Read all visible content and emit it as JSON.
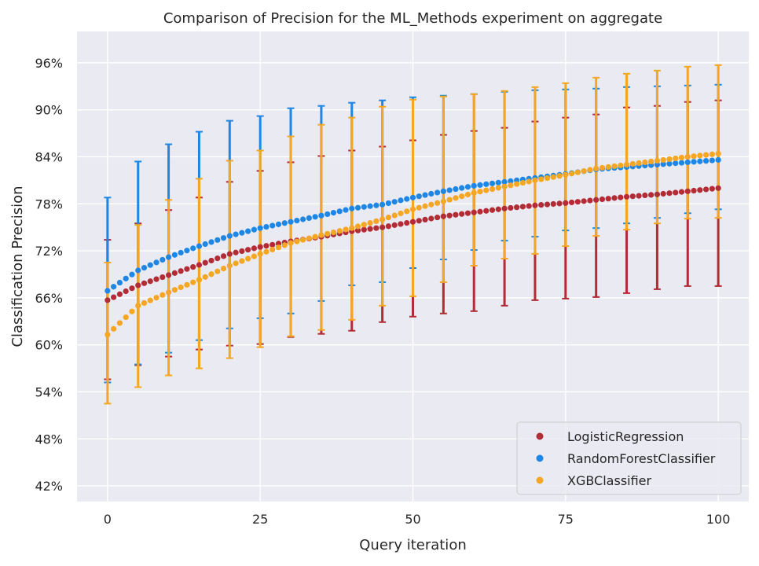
{
  "chart_data": {
    "type": "scatter",
    "title": "Comparison of Precision for the ML_Methods experiment on aggregate",
    "xlabel": "Query iteration",
    "ylabel": "Classification Precision",
    "xlim": [
      -5,
      105
    ],
    "ylim": [
      0.4,
      1.0
    ],
    "x_ticks": [
      0,
      25,
      50,
      75,
      100
    ],
    "x_tick_labels": [
      "0",
      "25",
      "50",
      "75",
      "100"
    ],
    "y_ticks": [
      0.42,
      0.48,
      0.54,
      0.6,
      0.66,
      0.72,
      0.78,
      0.84,
      0.9,
      0.96
    ],
    "y_tick_labels": [
      "42%",
      "48%",
      "54%",
      "60%",
      "66%",
      "72%",
      "78%",
      "84%",
      "90%",
      "96%"
    ],
    "grid": true,
    "legend_position": "lower-right",
    "background_color": "#eaeaf2",
    "series": [
      {
        "name": "LogisticRegression",
        "color": "#b22b35",
        "curve": {
          "x": [
            0,
            5,
            10,
            15,
            20,
            25,
            30,
            35,
            40,
            45,
            50,
            55,
            60,
            65,
            70,
            75,
            80,
            85,
            90,
            95,
            100
          ],
          "y": [
            0.657,
            0.676,
            0.689,
            0.702,
            0.716,
            0.725,
            0.732,
            0.738,
            0.745,
            0.75,
            0.757,
            0.764,
            0.769,
            0.774,
            0.778,
            0.781,
            0.785,
            0.789,
            0.792,
            0.796,
            0.8
          ]
        },
        "error_bars": {
          "x": [
            0,
            5,
            10,
            15,
            20,
            25,
            30,
            35,
            40,
            45,
            50,
            55,
            60,
            65,
            70,
            75,
            80,
            85,
            90,
            95,
            100
          ],
          "lower": [
            0.556,
            0.574,
            0.585,
            0.594,
            0.599,
            0.601,
            0.61,
            0.614,
            0.618,
            0.629,
            0.636,
            0.64,
            0.643,
            0.65,
            0.657,
            0.659,
            0.661,
            0.666,
            0.671,
            0.675,
            0.675
          ],
          "upper": [
            0.734,
            0.755,
            0.772,
            0.788,
            0.808,
            0.822,
            0.833,
            0.841,
            0.848,
            0.853,
            0.861,
            0.868,
            0.873,
            0.877,
            0.885,
            0.89,
            0.894,
            0.903,
            0.905,
            0.91,
            0.912
          ]
        }
      },
      {
        "name": "RandomForestClassifier",
        "color": "#1e87e5",
        "curve": {
          "x": [
            0,
            5,
            10,
            15,
            20,
            25,
            30,
            35,
            40,
            45,
            50,
            55,
            60,
            65,
            70,
            75,
            80,
            85,
            90,
            95,
            100
          ],
          "y": [
            0.669,
            0.695,
            0.712,
            0.726,
            0.739,
            0.749,
            0.757,
            0.765,
            0.774,
            0.779,
            0.788,
            0.796,
            0.803,
            0.808,
            0.813,
            0.818,
            0.824,
            0.827,
            0.83,
            0.833,
            0.836
          ]
        },
        "error_bars": {
          "x": [
            0,
            5,
            10,
            15,
            20,
            25,
            30,
            35,
            40,
            45,
            50,
            55,
            60,
            65,
            70,
            75,
            80,
            85,
            90,
            95,
            100
          ],
          "lower": [
            0.552,
            0.575,
            0.59,
            0.606,
            0.621,
            0.634,
            0.64,
            0.656,
            0.676,
            0.68,
            0.698,
            0.709,
            0.721,
            0.733,
            0.738,
            0.746,
            0.749,
            0.755,
            0.762,
            0.768,
            0.773
          ],
          "upper": [
            0.788,
            0.834,
            0.856,
            0.872,
            0.886,
            0.892,
            0.902,
            0.905,
            0.909,
            0.912,
            0.916,
            0.918,
            0.92,
            0.923,
            0.925,
            0.926,
            0.927,
            0.929,
            0.93,
            0.931,
            0.932
          ]
        }
      },
      {
        "name": "XGBClassifier",
        "color": "#f5a623",
        "curve": {
          "x": [
            0,
            5,
            10,
            15,
            20,
            25,
            30,
            35,
            40,
            45,
            50,
            55,
            60,
            65,
            70,
            75,
            80,
            85,
            90,
            95,
            100
          ],
          "y": [
            0.613,
            0.65,
            0.667,
            0.683,
            0.701,
            0.716,
            0.73,
            0.74,
            0.749,
            0.76,
            0.773,
            0.783,
            0.794,
            0.802,
            0.81,
            0.817,
            0.825,
            0.83,
            0.835,
            0.84,
            0.844
          ]
        },
        "error_bars": {
          "x": [
            0,
            5,
            10,
            15,
            20,
            25,
            30,
            35,
            40,
            45,
            50,
            55,
            60,
            65,
            70,
            75,
            80,
            85,
            90,
            95,
            100
          ],
          "lower": [
            0.525,
            0.546,
            0.561,
            0.57,
            0.583,
            0.597,
            0.611,
            0.619,
            0.632,
            0.65,
            0.662,
            0.68,
            0.701,
            0.71,
            0.716,
            0.726,
            0.739,
            0.747,
            0.755,
            0.761,
            0.762
          ],
          "upper": [
            0.705,
            0.753,
            0.785,
            0.812,
            0.835,
            0.848,
            0.866,
            0.881,
            0.89,
            0.904,
            0.913,
            0.917,
            0.92,
            0.924,
            0.929,
            0.934,
            0.941,
            0.946,
            0.95,
            0.955,
            0.957
          ]
        }
      }
    ]
  }
}
